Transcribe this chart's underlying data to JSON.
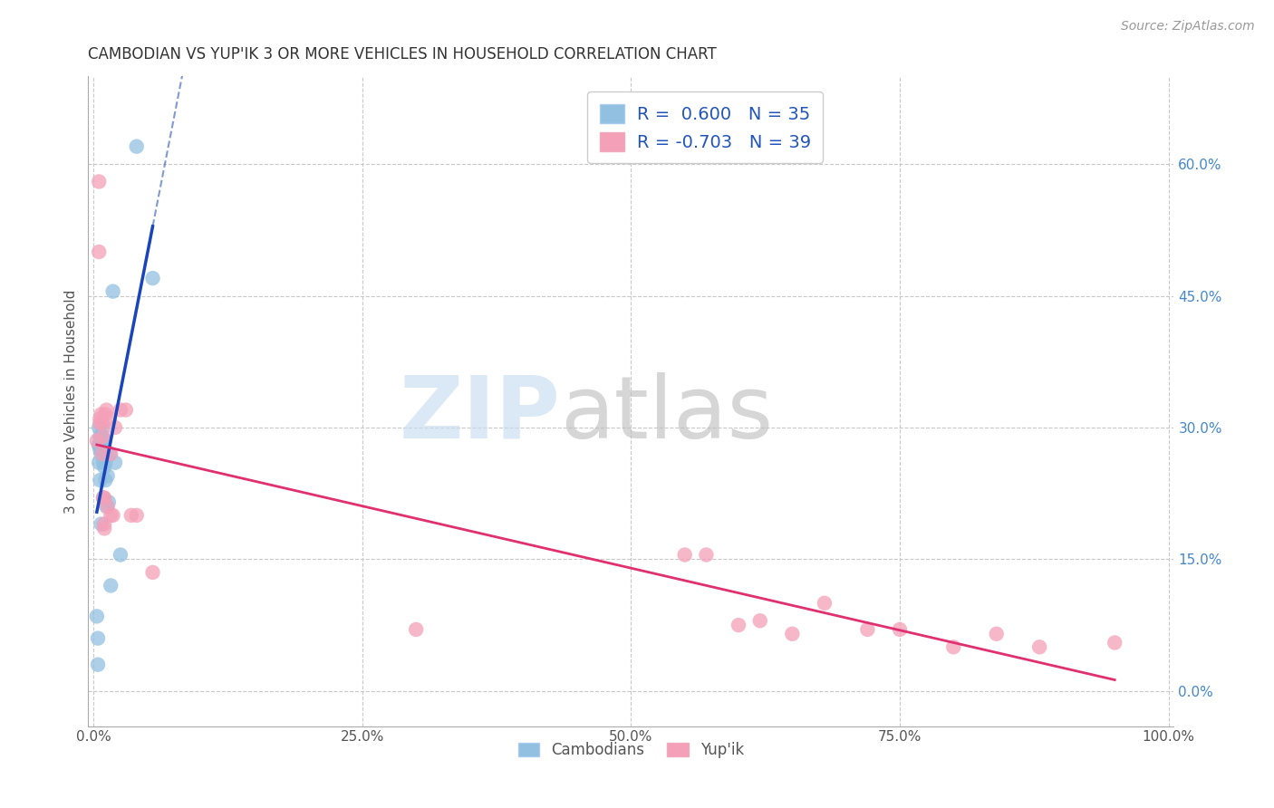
{
  "title": "CAMBODIAN VS YUP'IK 3 OR MORE VEHICLES IN HOUSEHOLD CORRELATION CHART",
  "source": "Source: ZipAtlas.com",
  "ylabel": "3 or more Vehicles in Household",
  "background_color": "#ffffff",
  "xlim": [
    -0.005,
    1.005
  ],
  "ylim": [
    -0.04,
    0.7
  ],
  "x_ticks": [
    0.0,
    0.25,
    0.5,
    0.75,
    1.0
  ],
  "x_tick_labels": [
    "0.0%",
    "25.0%",
    "50.0%",
    "75.0%",
    "100.0%"
  ],
  "y_ticks_right": [
    0.0,
    0.15,
    0.3,
    0.45,
    0.6
  ],
  "y_tick_labels_right": [
    "0.0%",
    "15.0%",
    "30.0%",
    "45.0%",
    "60.0%"
  ],
  "legend_R1": " 0.600",
  "legend_N1": "35",
  "legend_R2": "-0.703",
  "legend_N2": "39",
  "cambodian_color": "#92c0e0",
  "yupik_color": "#f4a0b8",
  "cambodian_line_color": "#1a44bb",
  "yupik_line_color": "#e03070",
  "grid_color": "#c8c8c8",
  "cambodian_x": [
    0.003,
    0.004,
    0.004,
    0.005,
    0.005,
    0.005,
    0.005,
    0.006,
    0.006,
    0.006,
    0.007,
    0.007,
    0.008,
    0.008,
    0.008,
    0.009,
    0.009,
    0.009,
    0.009,
    0.01,
    0.01,
    0.01,
    0.01,
    0.011,
    0.011,
    0.012,
    0.013,
    0.014,
    0.015,
    0.016,
    0.018,
    0.02,
    0.025,
    0.04,
    0.055
  ],
  "cambodian_y": [
    0.085,
    0.06,
    0.03,
    0.28,
    0.26,
    0.28,
    0.3,
    0.275,
    0.29,
    0.24,
    0.27,
    0.19,
    0.275,
    0.29,
    0.3,
    0.26,
    0.275,
    0.28,
    0.22,
    0.255,
    0.27,
    0.285,
    0.27,
    0.26,
    0.24,
    0.21,
    0.245,
    0.215,
    0.27,
    0.12,
    0.455,
    0.26,
    0.155,
    0.62,
    0.47
  ],
  "yupik_x": [
    0.003,
    0.005,
    0.005,
    0.006,
    0.006,
    0.007,
    0.008,
    0.008,
    0.009,
    0.009,
    0.01,
    0.01,
    0.01,
    0.011,
    0.012,
    0.013,
    0.015,
    0.016,
    0.016,
    0.018,
    0.02,
    0.025,
    0.03,
    0.035,
    0.04,
    0.055,
    0.3,
    0.55,
    0.57,
    0.6,
    0.62,
    0.65,
    0.68,
    0.72,
    0.75,
    0.8,
    0.84,
    0.88,
    0.95
  ],
  "yupik_y": [
    0.285,
    0.58,
    0.5,
    0.305,
    0.31,
    0.315,
    0.27,
    0.305,
    0.29,
    0.22,
    0.185,
    0.22,
    0.19,
    0.315,
    0.32,
    0.21,
    0.31,
    0.2,
    0.27,
    0.2,
    0.3,
    0.32,
    0.32,
    0.2,
    0.2,
    0.135,
    0.07,
    0.155,
    0.155,
    0.075,
    0.08,
    0.065,
    0.1,
    0.07,
    0.07,
    0.05,
    0.065,
    0.05,
    0.055
  ]
}
